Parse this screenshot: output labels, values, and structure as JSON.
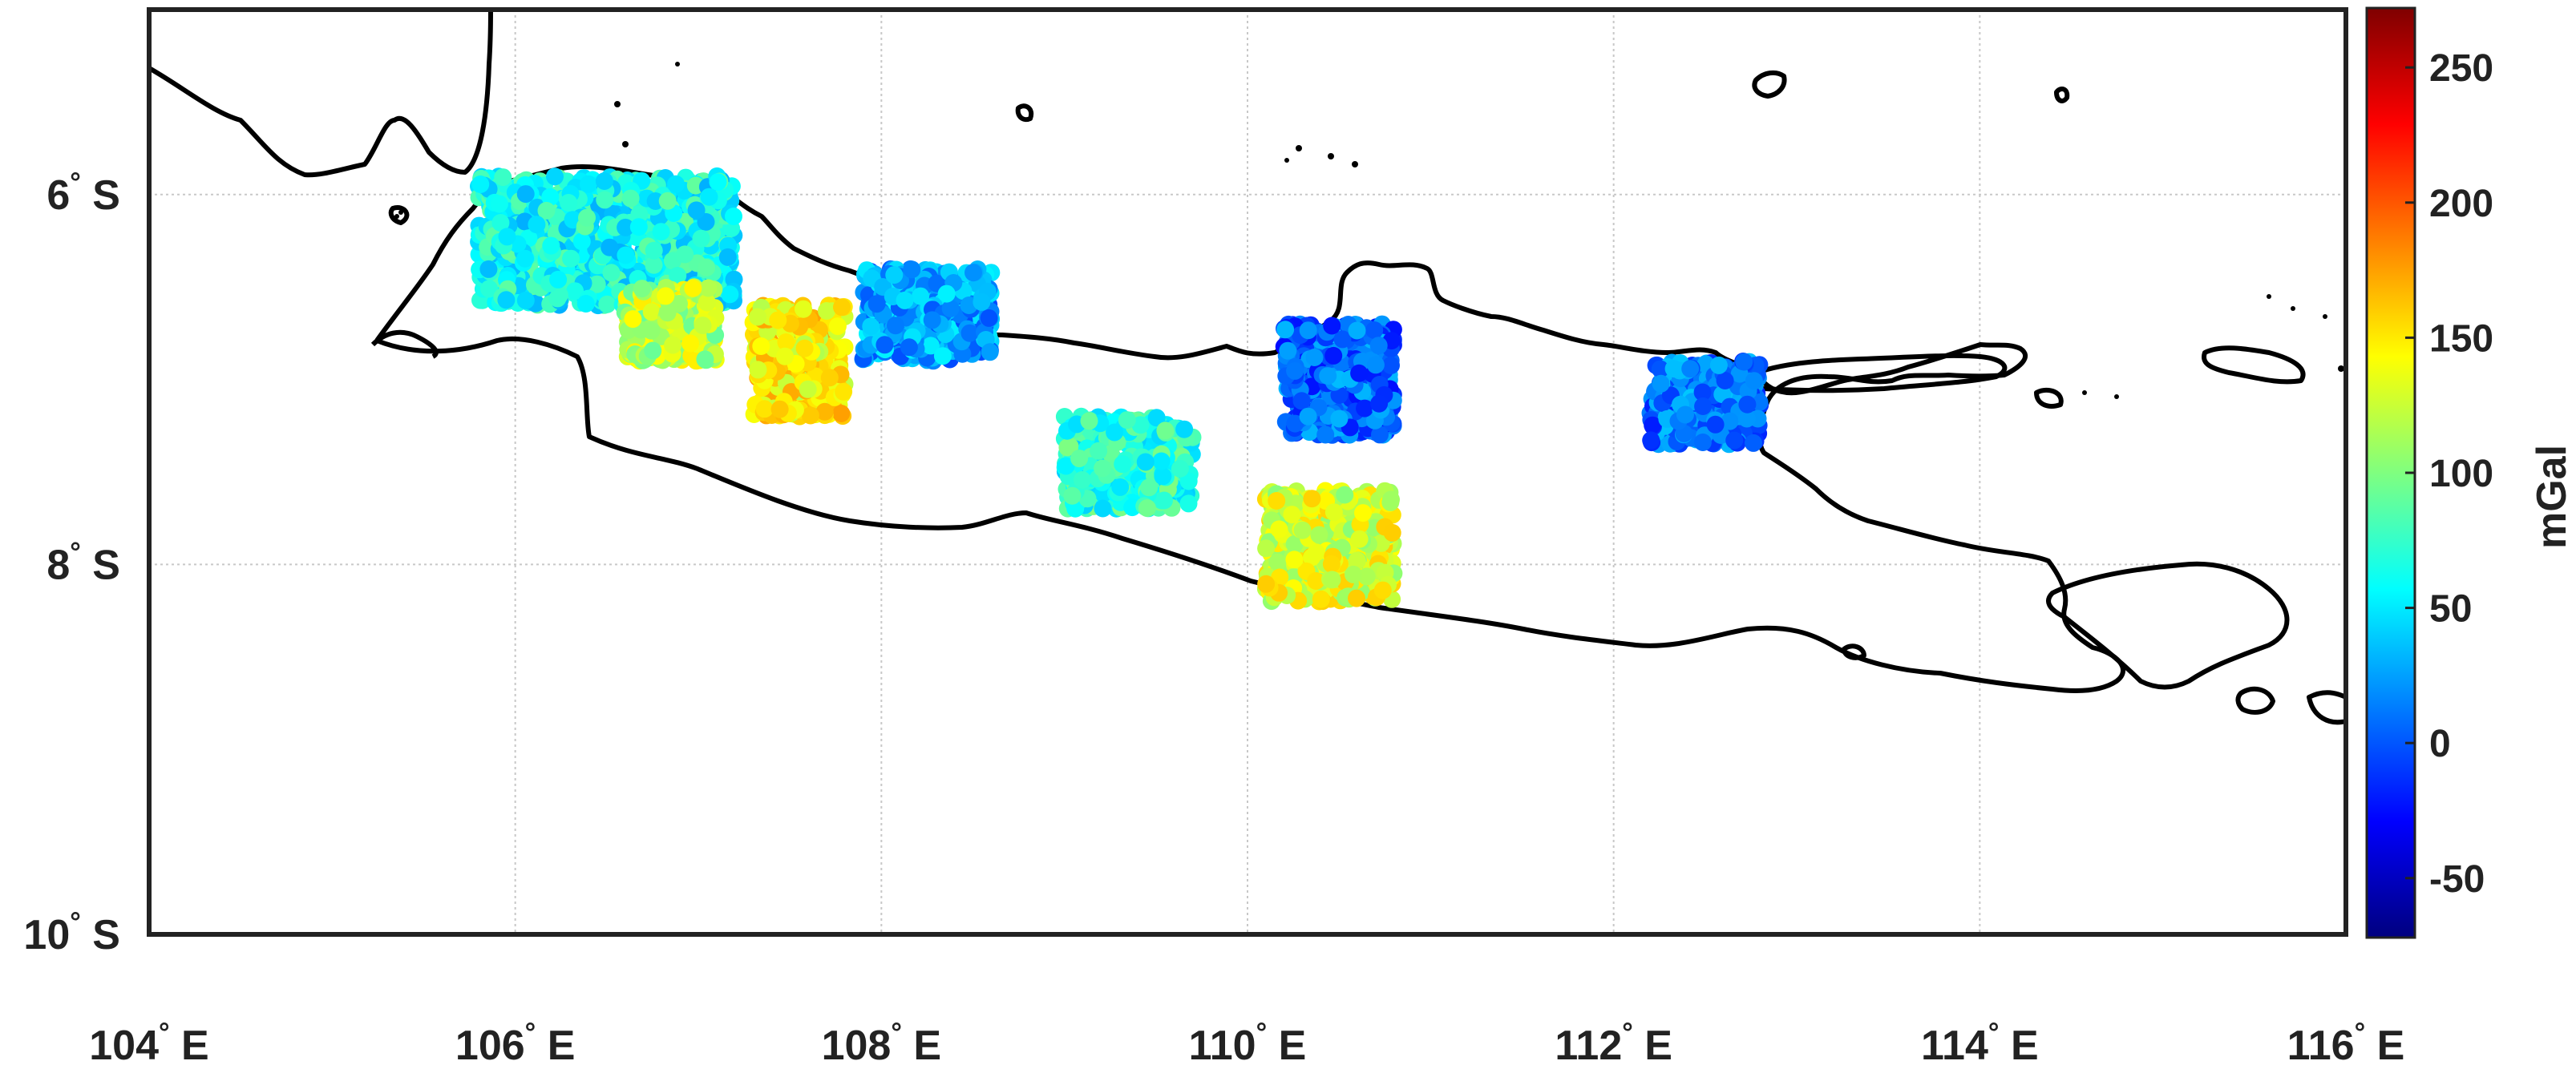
{
  "map": {
    "x_ticks": [
      {
        "deg": "104",
        "hemi": "E",
        "value": 104
      },
      {
        "deg": "106",
        "hemi": "E",
        "value": 106
      },
      {
        "deg": "108",
        "hemi": "E",
        "value": 108
      },
      {
        "deg": "110",
        "hemi": "E",
        "value": 110
      },
      {
        "deg": "112",
        "hemi": "E",
        "value": 112
      },
      {
        "deg": "114",
        "hemi": "E",
        "value": 114
      },
      {
        "deg": "116",
        "hemi": "E",
        "value": 116
      }
    ],
    "y_ticks": [
      {
        "deg": "6",
        "hemi": "S",
        "value": -6
      },
      {
        "deg": "8",
        "hemi": "S",
        "value": -8
      },
      {
        "deg": "10",
        "hemi": "S",
        "value": -10
      }
    ],
    "lon_range": [
      104,
      116
    ],
    "lat_range": [
      -10,
      -5
    ],
    "grid": true
  },
  "colorbar": {
    "label": "mGal",
    "ticks": [
      "250",
      "200",
      "150",
      "100",
      "50",
      "0",
      "-50"
    ],
    "tick_values": [
      250,
      200,
      150,
      100,
      50,
      0,
      -50
    ],
    "range": [
      -72,
      272
    ],
    "colormap": "jet"
  },
  "chart_data": {
    "type": "scatter",
    "description_unit": "mGal",
    "clusters": [
      {
        "lon": [
          105.8,
          107.2
        ],
        "lat": [
          -6.6,
          -5.9
        ],
        "mean": 60
      },
      {
        "lon": [
          106.6,
          107.1
        ],
        "lat": [
          -6.9,
          -6.5
        ],
        "mean": 120
      },
      {
        "lon": [
          107.3,
          107.8
        ],
        "lat": [
          -7.2,
          -6.6
        ],
        "mean": 145
      },
      {
        "lon": [
          107.9,
          108.6
        ],
        "lat": [
          -6.9,
          -6.4
        ],
        "mean": 25
      },
      {
        "lon": [
          109.0,
          109.7
        ],
        "lat": [
          -7.7,
          -7.2
        ],
        "mean": 70
      },
      {
        "lon": [
          110.2,
          110.8
        ],
        "lat": [
          -7.3,
          -6.7
        ],
        "mean": 5
      },
      {
        "lon": [
          110.1,
          110.8
        ],
        "lat": [
          -8.2,
          -7.6
        ],
        "mean": 130
      },
      {
        "lon": [
          112.2,
          112.8
        ],
        "lat": [
          -7.35,
          -6.9
        ],
        "mean": 10
      }
    ]
  }
}
